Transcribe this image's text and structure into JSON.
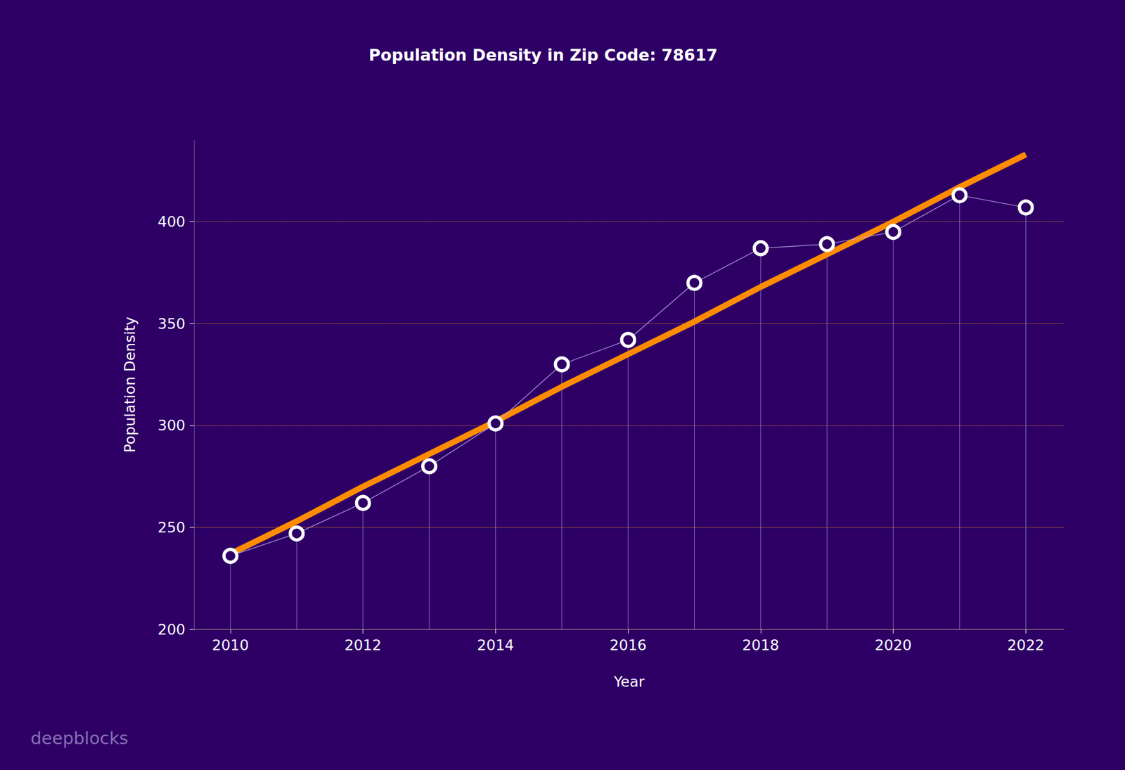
{
  "chart_data": {
    "type": "line",
    "title": "Population Density in Zip Code: 78617",
    "xlabel": "Year",
    "ylabel": "Population Density",
    "x": [
      2010,
      2011,
      2012,
      2013,
      2014,
      2015,
      2016,
      2017,
      2018,
      2019,
      2020,
      2021,
      2022
    ],
    "series": [
      {
        "values": [
          236,
          247,
          262,
          280,
          301,
          330,
          342,
          370,
          387,
          389,
          395,
          413,
          407
        ],
        "color": "#ffffff",
        "marker": "o",
        "line_style": "solid"
      },
      {
        "values": [
          237,
          253,
          270,
          286,
          302,
          319,
          335,
          351,
          368,
          384,
          400,
          417,
          433
        ],
        "color": "#ff8c00",
        "marker": "none",
        "line_style": "solid"
      }
    ],
    "xlim": [
      2009.45,
      2022.58
    ],
    "xticks": [
      2010,
      2012,
      2014,
      2016,
      2018,
      2020,
      2022
    ],
    "ylim": [
      200,
      440
    ],
    "yticks": [
      200,
      250,
      300,
      350,
      400
    ],
    "grid": true,
    "annotations": [
      "deepblocks"
    ]
  }
}
